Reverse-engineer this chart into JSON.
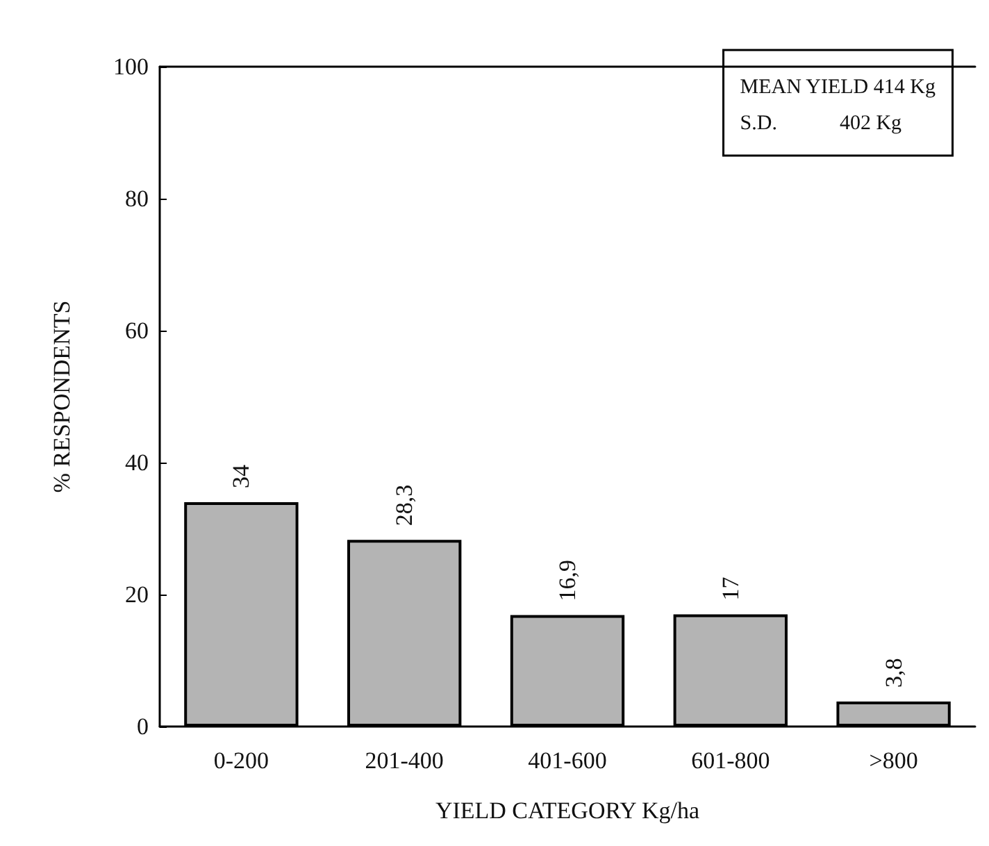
{
  "chart_data": {
    "type": "bar",
    "xlabel": "YIELD CATEGORY Kg/ha",
    "ylabel": "% RESPONDENTS",
    "categories": [
      "0-200",
      "201-400",
      "401-600",
      "601-800",
      ">800"
    ],
    "values": [
      34,
      28.3,
      16.9,
      17,
      3.8
    ],
    "value_labels": [
      "34",
      "28,3",
      "16,9",
      "17",
      "3,8"
    ],
    "color": "#b4b4b4",
    "ylim": [
      0,
      100
    ],
    "yticks": [
      0,
      20,
      40,
      60,
      80,
      100
    ],
    "grid": false,
    "annotations": [
      "MEAN YIELD 414 Kg",
      "S.D.            402 Kg"
    ]
  }
}
